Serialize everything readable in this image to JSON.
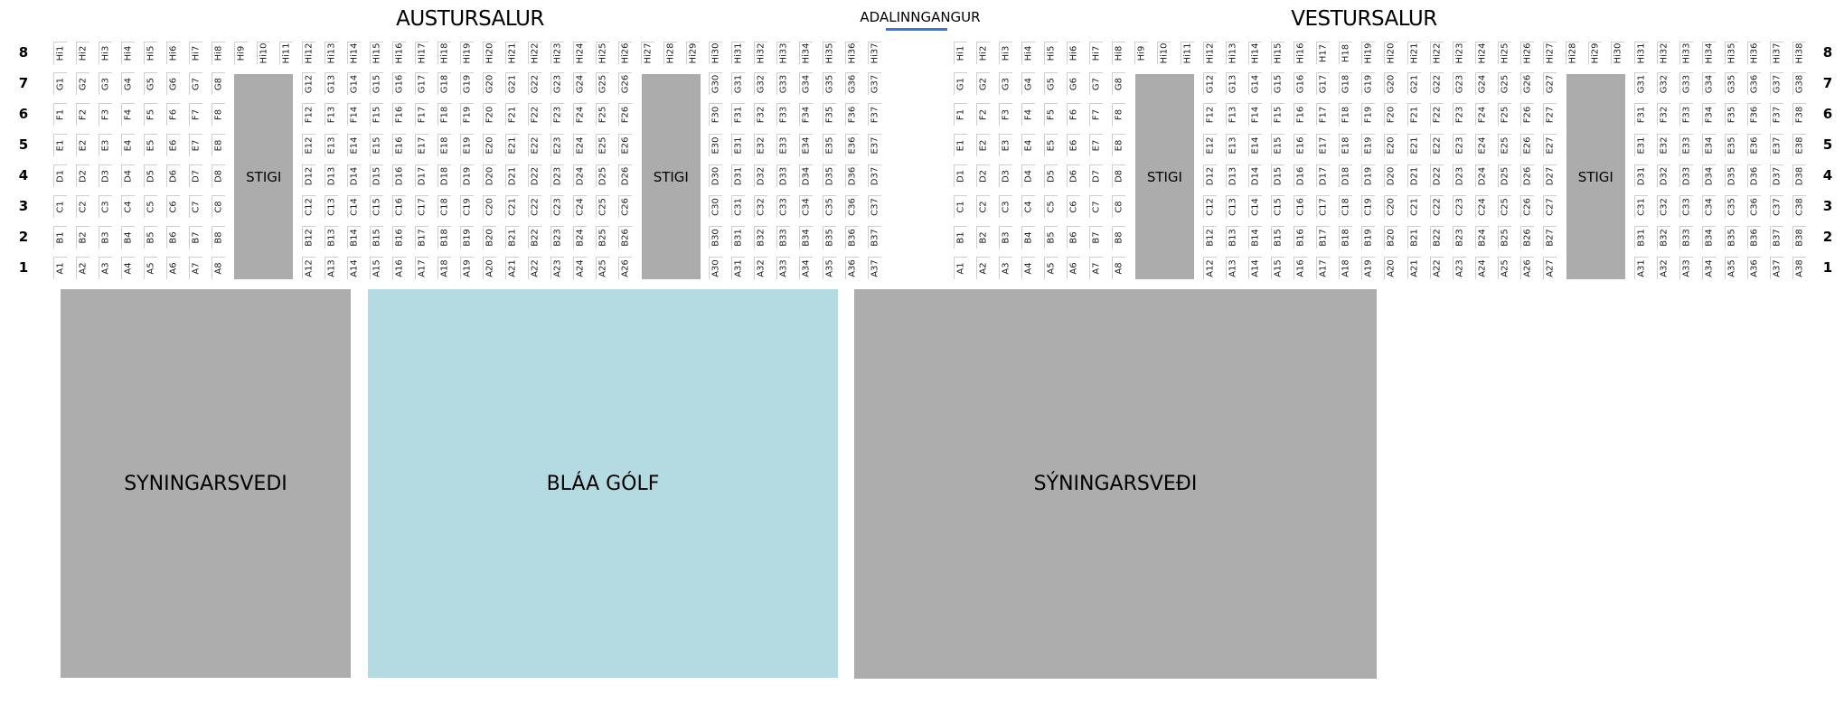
{
  "colors": {
    "stair": "#acacac",
    "exhibition": "#adadad",
    "blue_floor": "#b5dbe2",
    "entrance_line": "#3b73e0"
  },
  "entrance": {
    "label": "ADALINNGANGUR"
  },
  "row_numbers": [
    "8",
    "7",
    "6",
    "5",
    "4",
    "3",
    "2",
    "1"
  ],
  "halls": [
    {
      "title": "AUSTURSALUR",
      "top_row_prefix": "Hi",
      "top_row_columns": [
        1,
        37
      ],
      "seat_rows": [
        "G",
        "F",
        "E",
        "D",
        "C",
        "B",
        "A"
      ],
      "seat_columns": [
        [
          1,
          8
        ],
        [
          12,
          26
        ],
        [
          30,
          37
        ]
      ],
      "stairs": [
        {
          "label": "STIGI",
          "columns": [
            9,
            11
          ]
        },
        {
          "label": "STIGI",
          "columns": [
            27,
            29
          ]
        }
      ],
      "label_overrides": {}
    },
    {
      "title": "VESTURSALUR",
      "top_row_prefix": "Hi",
      "top_row_columns": [
        1,
        38
      ],
      "seat_rows": [
        "G",
        "F",
        "E",
        "D",
        "C",
        "B",
        "A"
      ],
      "seat_columns": [
        [
          1,
          8
        ],
        [
          12,
          27
        ],
        [
          31,
          38
        ]
      ],
      "stairs": [
        {
          "label": "STIGI",
          "columns": [
            9,
            11
          ]
        },
        {
          "label": "STIGI",
          "columns": [
            28,
            30
          ]
        }
      ],
      "label_overrides": {
        "Hi17": "H17",
        "Hi18": "H18"
      }
    }
  ],
  "areas": [
    {
      "label": "SYNINGARSVEDI",
      "kind": "exhibition"
    },
    {
      "label": "BLÁA GÓLF",
      "kind": "blue_floor"
    },
    {
      "label": "SÝNINGARSVEÐI",
      "kind": "exhibition"
    }
  ]
}
